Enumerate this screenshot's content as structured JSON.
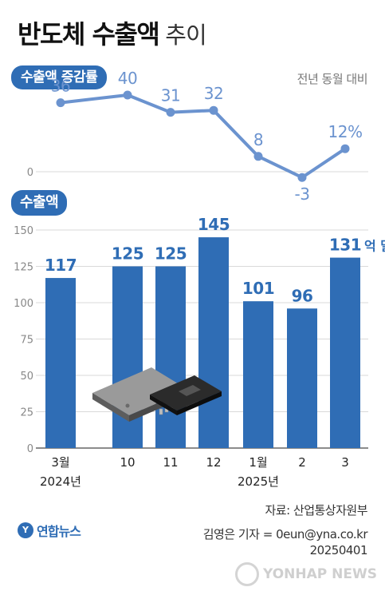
{
  "title": {
    "main": "반도체 수출액",
    "sub": "추이"
  },
  "line_section": {
    "label": "수출액 증감률",
    "note": "전년 동월 대비",
    "zero_label": "0"
  },
  "bar_section": {
    "label": "수출액"
  },
  "footer": {
    "source": "자료: 산업통상자원부",
    "reporter": "김영은 기자 = 0eun@yna.co.kr",
    "date": "20250401",
    "logo_text": "연합뉴스",
    "watermark": "YONHAP NEWS"
  },
  "x_labels": [
    {
      "line1": "3월",
      "line2": "2024년"
    },
    {
      "line1": "10",
      "line2": ""
    },
    {
      "line1": "11",
      "line2": ""
    },
    {
      "line1": "12",
      "line2": ""
    },
    {
      "line1": "1월",
      "line2": "2025년"
    },
    {
      "line1": "2",
      "line2": ""
    },
    {
      "line1": "3",
      "line2": ""
    }
  ],
  "colors": {
    "accent": "#2f6db5",
    "line": "#6b93cf",
    "grid": "#d9d9d9"
  },
  "chart_data": [
    {
      "type": "line",
      "title": "수출액 증감률",
      "subtitle": "전년 동월 대비",
      "x": [
        "3월 2024년",
        "10",
        "11",
        "12",
        "1월 2025년",
        "2",
        "3"
      ],
      "values": [
        36,
        40,
        31,
        32,
        8,
        -3,
        12
      ],
      "value_labels": [
        "36",
        "40",
        "31",
        "32",
        "8",
        "-3",
        "12%"
      ],
      "ylim": [
        -3,
        40
      ],
      "grid": false
    },
    {
      "type": "bar",
      "title": "수출액",
      "categories": [
        "3월 2024년",
        "10",
        "11",
        "12",
        "1월 2025년",
        "2",
        "3"
      ],
      "values": [
        117,
        125,
        125,
        145,
        101,
        96,
        131
      ],
      "value_labels": [
        "117",
        "125",
        "125",
        "145",
        "101",
        "96",
        "131"
      ],
      "unit_label": "억 달러",
      "yticks": [
        "0",
        "25",
        "50",
        "75",
        "100",
        "125",
        "150"
      ],
      "ytick_values": [
        0,
        25,
        50,
        75,
        100,
        125,
        150
      ],
      "ylim": [
        0,
        150
      ],
      "grid": true
    }
  ]
}
